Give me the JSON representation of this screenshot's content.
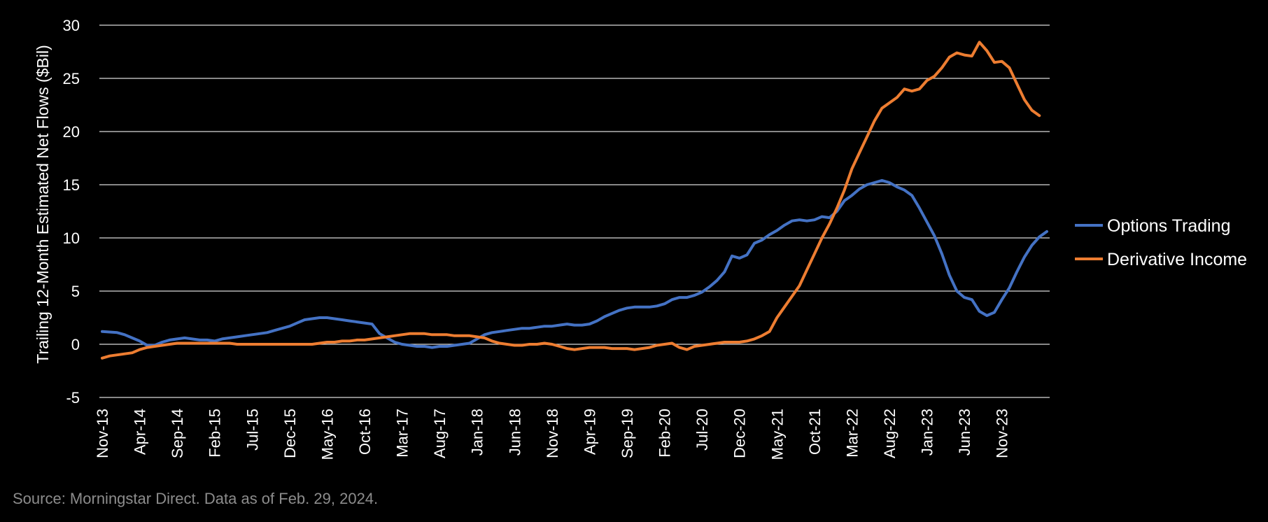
{
  "chart_data": {
    "type": "line",
    "title": "",
    "xlabel": "",
    "ylabel": "Trailing 12-Month Estimated Net Flows ($Bil)",
    "ylim": [
      -5,
      30
    ],
    "yticks": [
      -5,
      0,
      5,
      10,
      15,
      20,
      25,
      30
    ],
    "grid": true,
    "legend_position": "right",
    "x_tick_labels": [
      "Nov-13",
      "Apr-14",
      "Sep-14",
      "Feb-15",
      "Jul-15",
      "Dec-15",
      "May-16",
      "Oct-16",
      "Mar-17",
      "Aug-17",
      "Jan-18",
      "Jun-18",
      "Nov-18",
      "Apr-19",
      "Sep-19",
      "Feb-20",
      "Jul-20",
      "Dec-20",
      "May-21",
      "Oct-21",
      "Mar-22",
      "Aug-22",
      "Jan-23",
      "Jun-23",
      "Nov-23"
    ],
    "x_start": "Nov-13",
    "x_end": "Feb-24",
    "series": [
      {
        "name": "Options Trading",
        "color": "#4472c4",
        "values": [
          1.2,
          1.15,
          1.1,
          0.9,
          0.6,
          0.3,
          -0.1,
          -0.1,
          0.2,
          0.4,
          0.5,
          0.6,
          0.5,
          0.4,
          0.4,
          0.3,
          0.5,
          0.6,
          0.7,
          0.8,
          0.9,
          1.0,
          1.1,
          1.3,
          1.5,
          1.7,
          2.0,
          2.3,
          2.4,
          2.5,
          2.5,
          2.4,
          2.3,
          2.2,
          2.1,
          2.0,
          1.9,
          1.0,
          0.6,
          0.2,
          0.0,
          -0.1,
          -0.2,
          -0.2,
          -0.3,
          -0.2,
          -0.2,
          -0.1,
          0.0,
          0.1,
          0.5,
          0.9,
          1.1,
          1.2,
          1.3,
          1.4,
          1.5,
          1.5,
          1.6,
          1.7,
          1.7,
          1.8,
          1.9,
          1.8,
          1.8,
          1.9,
          2.2,
          2.6,
          2.9,
          3.2,
          3.4,
          3.5,
          3.5,
          3.5,
          3.6,
          3.8,
          4.2,
          4.4,
          4.4,
          4.6,
          4.9,
          5.4,
          6.0,
          6.8,
          8.3,
          8.1,
          8.4,
          9.5,
          9.8,
          10.3,
          10.7,
          11.2,
          11.6,
          11.7,
          11.6,
          11.7,
          12.0,
          11.9,
          12.5,
          13.5,
          14.0,
          14.6,
          15.0,
          15.2,
          15.4,
          15.2,
          14.8,
          14.5,
          14.0,
          12.8,
          11.5,
          10.2,
          8.5,
          6.5,
          5.0,
          4.4,
          4.2,
          3.1,
          2.7,
          3.0,
          4.2,
          5.3,
          6.8,
          8.2,
          9.3,
          10.1,
          10.6
        ]
      },
      {
        "name": "Derivative Income",
        "color": "#ed7d31",
        "values": [
          -1.3,
          -1.1,
          -1.0,
          -0.9,
          -0.8,
          -0.5,
          -0.3,
          -0.2,
          -0.1,
          0.0,
          0.1,
          0.1,
          0.1,
          0.1,
          0.1,
          0.1,
          0.1,
          0.1,
          0.0,
          0.0,
          0.0,
          0.0,
          0.0,
          0.0,
          0.0,
          0.0,
          0.0,
          0.0,
          0.0,
          0.1,
          0.2,
          0.2,
          0.3,
          0.3,
          0.4,
          0.4,
          0.5,
          0.6,
          0.7,
          0.8,
          0.9,
          1.0,
          1.0,
          1.0,
          0.9,
          0.9,
          0.9,
          0.8,
          0.8,
          0.8,
          0.7,
          0.6,
          0.3,
          0.1,
          0.0,
          -0.1,
          -0.1,
          0.0,
          0.0,
          0.1,
          0.0,
          -0.2,
          -0.4,
          -0.5,
          -0.4,
          -0.3,
          -0.3,
          -0.3,
          -0.4,
          -0.4,
          -0.4,
          -0.5,
          -0.4,
          -0.3,
          -0.1,
          0.0,
          0.1,
          -0.3,
          -0.5,
          -0.2,
          -0.1,
          0.0,
          0.1,
          0.2,
          0.2,
          0.2,
          0.3,
          0.5,
          0.8,
          1.2,
          2.5,
          3.5,
          4.5,
          5.5,
          7.0,
          8.5,
          10.0,
          11.3,
          12.8,
          14.5,
          16.5,
          18.0,
          19.5,
          21.0,
          22.2,
          22.7,
          23.2,
          24.0,
          23.8,
          24.0,
          24.8,
          25.2,
          26.0,
          27.0,
          27.4,
          27.2,
          27.1,
          28.4,
          27.6,
          26.5,
          26.6,
          26.0,
          24.5,
          23.0,
          22.0,
          21.5
        ]
      }
    ]
  },
  "source_note": "Source: Morningstar Direct. Data as of Feb. 29, 2024."
}
